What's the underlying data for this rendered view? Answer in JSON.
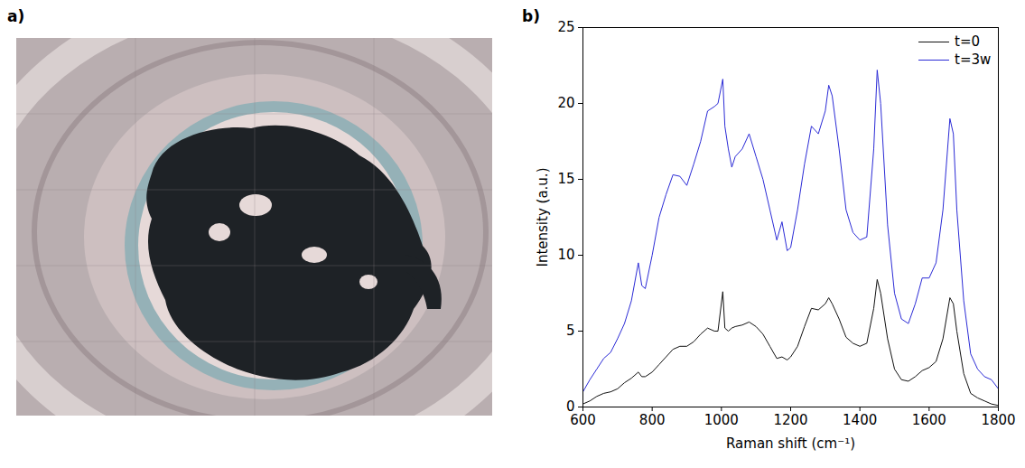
{
  "panels": {
    "a": {
      "label": "a)"
    }
  },
  "chart_data": {
    "type": "line",
    "panel_label": "b)",
    "xlabel": "Raman shift (cm⁻¹)",
    "ylabel": "Intensity (a.u.)",
    "x": [
      600,
      620,
      640,
      660,
      680,
      700,
      720,
      740,
      760,
      770,
      780,
      800,
      820,
      840,
      860,
      880,
      900,
      920,
      940,
      960,
      980,
      990,
      1004,
      1010,
      1020,
      1030,
      1040,
      1060,
      1080,
      1100,
      1120,
      1140,
      1160,
      1175,
      1190,
      1200,
      1220,
      1240,
      1260,
      1280,
      1300,
      1310,
      1320,
      1340,
      1360,
      1380,
      1400,
      1420,
      1440,
      1450,
      1460,
      1480,
      1500,
      1520,
      1540,
      1560,
      1580,
      1600,
      1620,
      1640,
      1660,
      1670,
      1680,
      1700,
      1720,
      1740,
      1760,
      1780,
      1800
    ],
    "series": [
      {
        "name": "t=0",
        "color": "#111111",
        "values": [
          0.2,
          0.4,
          0.7,
          0.9,
          1.0,
          1.2,
          1.6,
          1.9,
          2.3,
          2.0,
          2.0,
          2.3,
          2.8,
          3.3,
          3.8,
          4.0,
          4.0,
          4.3,
          4.8,
          5.2,
          5.0,
          5.0,
          7.6,
          5.2,
          5.0,
          5.2,
          5.3,
          5.4,
          5.6,
          5.3,
          4.8,
          4.0,
          3.2,
          3.3,
          3.1,
          3.3,
          4.0,
          5.3,
          6.5,
          6.4,
          6.8,
          7.2,
          6.8,
          5.8,
          4.6,
          4.2,
          4.0,
          4.2,
          6.5,
          8.4,
          7.5,
          4.5,
          2.5,
          1.8,
          1.7,
          2.0,
          2.4,
          2.6,
          3.0,
          4.5,
          7.2,
          6.8,
          5.0,
          2.2,
          0.9,
          0.6,
          0.4,
          0.2,
          0.1
        ]
      },
      {
        "name": "t=3w",
        "color": "#2b2bd6",
        "values": [
          1.0,
          1.8,
          2.5,
          3.2,
          3.6,
          4.5,
          5.5,
          7.0,
          9.5,
          8.0,
          7.8,
          10,
          12.5,
          14.0,
          15.3,
          15.2,
          14.6,
          16.0,
          17.5,
          19.5,
          19.8,
          20.0,
          21.6,
          18.5,
          17.0,
          15.8,
          16.5,
          17.0,
          18.0,
          16.5,
          15.0,
          13.0,
          11.0,
          12.2,
          10.3,
          10.5,
          13.0,
          16.0,
          18.5,
          18.0,
          19.5,
          21.2,
          20.5,
          17.0,
          13.0,
          11.5,
          11.0,
          11.2,
          17.0,
          22.2,
          20.0,
          12.0,
          7.5,
          5.8,
          5.5,
          6.8,
          8.5,
          8.5,
          9.5,
          13.0,
          19.0,
          18.0,
          13.0,
          7.0,
          3.5,
          2.5,
          2.0,
          1.8,
          1.2
        ]
      }
    ],
    "xlim": [
      600,
      1800
    ],
    "xticks": [
      600,
      800,
      1000,
      1200,
      1400,
      1600,
      1800
    ],
    "ylim": [
      0,
      25
    ],
    "yticks": [
      0,
      5,
      10,
      15,
      20,
      25
    ],
    "grid": false,
    "legend": "top-right"
  }
}
